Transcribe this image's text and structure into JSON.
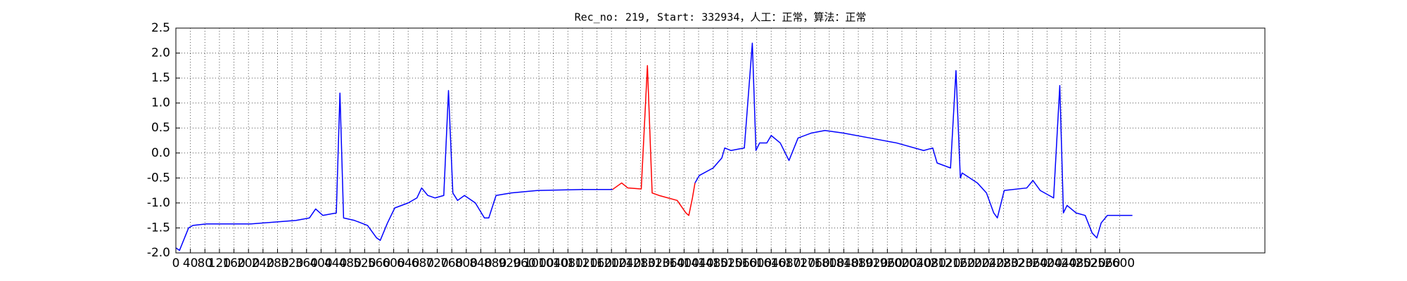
{
  "chart_data": {
    "type": "line",
    "title": "Rec_no: 219, Start: 332934，人工：正常，算法：正常",
    "x": [
      0,
      10,
      35,
      47,
      84,
      207,
      331,
      368,
      385,
      405,
      442,
      452,
      462,
      492,
      528,
      553,
      563,
      583,
      603,
      640,
      664,
      677,
      694,
      714,
      738,
      751,
      763,
      776,
      795,
      825,
      850,
      862,
      882,
      924,
      998,
      1121,
      1203,
      1228,
      1245,
      1282,
      1299,
      1312,
      1331,
      1381,
      1405,
      1413,
      1423,
      1430,
      1442,
      1480,
      1504,
      1512,
      1529,
      1566,
      1588,
      1598,
      1608,
      1628,
      1640,
      1665,
      1689,
      1714,
      1751,
      1788,
      1838,
      1912,
      1986,
      2060,
      2085,
      2097,
      2134,
      2149,
      2161,
      2166,
      2208,
      2233,
      2253,
      2263,
      2282,
      2344,
      2361,
      2381,
      2418,
      2435,
      2445,
      2455,
      2480,
      2505,
      2524,
      2537,
      2549,
      2566,
      2635
    ],
    "series": [
      {
        "color": "#0000ff",
        "values": [
          -1.9,
          -1.95,
          -1.5,
          -1.45,
          -1.42,
          -1.42,
          -1.35,
          -1.3,
          -1.12,
          -1.25,
          -1.2,
          1.2,
          -1.3,
          -1.35,
          -1.45,
          -1.7,
          -1.75,
          -1.4,
          -1.1,
          -1.0,
          -0.9,
          -0.7,
          -0.85,
          -0.9,
          -0.85,
          1.25,
          -0.8,
          -0.95,
          -0.85,
          -1.0,
          -1.3,
          -1.3,
          -0.85,
          -0.8,
          -0.75,
          -0.73,
          -0.73,
          null,
          null,
          null,
          null,
          null,
          null,
          null,
          null,
          null,
          null,
          -0.6,
          -0.45,
          -0.3,
          -0.1,
          0.1,
          0.05,
          0.1,
          2.2,
          0.05,
          0.2,
          0.2,
          0.35,
          0.2,
          -0.15,
          0.3,
          0.4,
          0.45,
          0.4,
          0.3,
          0.2,
          0.05,
          0.1,
          -0.2,
          -0.3,
          1.65,
          -0.5,
          -0.4,
          -0.6,
          -0.8,
          -1.2,
          -1.3,
          -0.75,
          -0.7,
          -0.55,
          -0.75,
          -0.9,
          1.35,
          -1.2,
          -1.05,
          -1.2,
          -1.25,
          -1.6,
          -1.7,
          -1.4,
          -1.25,
          -1.25
        ]
      },
      {
        "color": "#ff0000",
        "values": [
          null,
          null,
          null,
          null,
          null,
          null,
          null,
          null,
          null,
          null,
          null,
          null,
          null,
          null,
          null,
          null,
          null,
          null,
          null,
          null,
          null,
          null,
          null,
          null,
          null,
          null,
          null,
          null,
          null,
          null,
          null,
          null,
          null,
          null,
          null,
          null,
          -0.73,
          -0.6,
          -0.7,
          -0.72,
          1.75,
          -0.8,
          -0.85,
          -0.95,
          -1.2,
          -1.25,
          -0.9,
          -0.6,
          null,
          null,
          null,
          null,
          null,
          null,
          null,
          null,
          null,
          null,
          null,
          null,
          null,
          null,
          null,
          null,
          null,
          null,
          null,
          null,
          null,
          null,
          null,
          null,
          null,
          null,
          null,
          null,
          null,
          null,
          null,
          null,
          null,
          null,
          null,
          null,
          null,
          null,
          null,
          null,
          null,
          null,
          null,
          null,
          null
        ]
      }
    ],
    "xlim": [
      0,
      3000
    ],
    "xticks": [
      0,
      40,
      80,
      120,
      160,
      200,
      240,
      280,
      320,
      360,
      400,
      440,
      480,
      520,
      560,
      600,
      640,
      680,
      720,
      760,
      800,
      840,
      880,
      920,
      960,
      1000,
      1040,
      1080,
      1120,
      1160,
      1200,
      1240,
      1280,
      1320,
      1360,
      1400,
      1440,
      1480,
      1520,
      1560,
      1600,
      1640,
      1680,
      1720,
      1760,
      1800,
      1840,
      1880,
      1920,
      1960,
      2000,
      2040,
      2080,
      2120,
      2160,
      2200,
      2240,
      2280,
      2320,
      2360,
      2400,
      2440,
      2480,
      2520,
      2560,
      2600
    ],
    "ylim": [
      -2,
      2.5
    ],
    "yticks": [
      {
        "value": -2,
        "label": "-2.0"
      },
      -1.5,
      {
        "value": -1,
        "label": "-1.0"
      },
      -0.5,
      {
        "value": 0,
        "label": "0.0"
      },
      0.5,
      {
        "value": 1,
        "label": "1.0"
      },
      1.5,
      {
        "value": 2,
        "label": "2.0"
      },
      2.5
    ],
    "grid": true
  }
}
